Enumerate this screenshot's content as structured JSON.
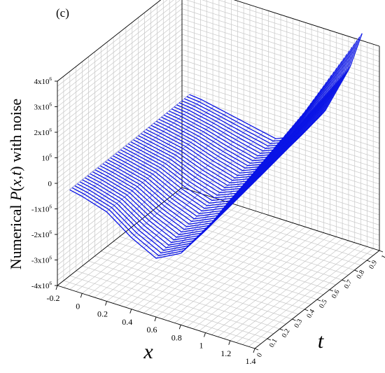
{
  "figure": {
    "panel_label": "(c)"
  },
  "chart_data": {
    "type": "surface-wireframe",
    "panel_label": "(c)",
    "title": "",
    "xlabel": "x",
    "tlabel": "t",
    "zlabel": {
      "prefix": "Numerical ",
      "italic_p": "P",
      "paren_open": "(",
      "italic_x": "x",
      "comma": ",",
      "italic_t": "t",
      "paren_close": ")",
      "suffix": " with noise"
    },
    "x_range": [
      -0.2,
      1.4
    ],
    "t_range": [
      0,
      1
    ],
    "z_range": [
      -4000000,
      4000000
    ],
    "x_tick_labels": [
      "-0.2",
      "0",
      "0.2",
      "0.4",
      "0.6",
      "0.8",
      "1",
      "1.2",
      "1.4"
    ],
    "t_tick_labels": [
      "0",
      "0.1",
      "0.2",
      "0.3",
      "0.4",
      "0.5",
      "0.6",
      "0.7",
      "0.8",
      "0.9",
      "1"
    ],
    "z_tick_labels": [
      {
        "mantissa": "4x10",
        "exp": "6"
      },
      {
        "mantissa": "3x10",
        "exp": "6"
      },
      {
        "mantissa": "2x10",
        "exp": "6"
      },
      {
        "mantissa": "10",
        "exp": "6"
      },
      {
        "mantissa": "0",
        "exp": ""
      },
      {
        "mantissa": "-1x10",
        "exp": "6"
      },
      {
        "mantissa": "-2x10",
        "exp": "6"
      },
      {
        "mantissa": "-3x10",
        "exp": "6"
      },
      {
        "mantissa": "-4x10",
        "exp": "6"
      }
    ],
    "surface": {
      "color": "#0a14e6",
      "x_extent": [
        -0.1,
        1.3
      ],
      "t_extent": [
        0,
        0.96
      ],
      "curve_count": 48,
      "sample_x": [
        -0.1,
        0,
        0.2,
        0.4,
        0.6,
        0.8,
        1.0,
        1.2,
        1.3
      ],
      "sample_t": [
        0,
        0.5,
        0.96
      ],
      "sample_z": [
        [
          -100000,
          -200000,
          -500000,
          -1200000,
          -1700000,
          -1200000,
          0,
          1500000,
          2200000
        ],
        [
          -100000,
          -200000,
          -400000,
          -800000,
          -1100000,
          -700000,
          500000,
          2200000,
          3200000
        ],
        [
          -50000,
          -100000,
          -300000,
          -500000,
          -700000,
          -300000,
          1000000,
          3000000,
          4500000
        ]
      ]
    },
    "grid": true,
    "legend": "none"
  }
}
